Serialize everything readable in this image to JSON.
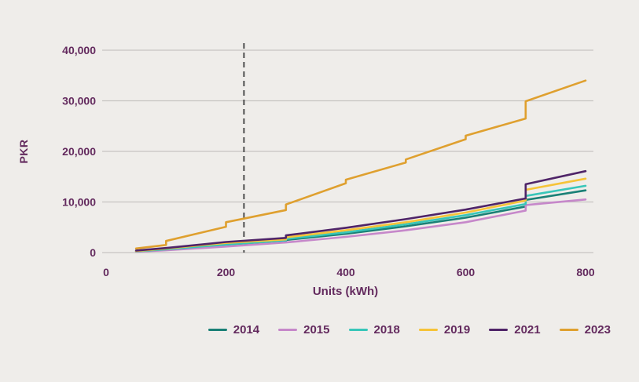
{
  "chart_data": {
    "type": "line",
    "title": "",
    "xlabel": "Units (kWh)",
    "ylabel": "PKR",
    "xlim": [
      0,
      800
    ],
    "ylim": [
      0,
      40000
    ],
    "grid": "horizontal",
    "legend_position": "bottom",
    "x_ticks": [
      {
        "value": 0,
        "label": "0"
      },
      {
        "value": 200,
        "label": "200"
      },
      {
        "value": 400,
        "label": "400"
      },
      {
        "value": 600,
        "label": "600"
      },
      {
        "value": 800,
        "label": "800"
      }
    ],
    "y_ticks": [
      {
        "value": 0,
        "label": "0"
      },
      {
        "value": 10000,
        "label": "10,000"
      },
      {
        "value": 20000,
        "label": "20,000"
      },
      {
        "value": 30000,
        "label": "30,000"
      },
      {
        "value": 40000,
        "label": "40,000"
      }
    ],
    "annotation": {
      "type": "vline",
      "x": 230,
      "style": "dashed"
    },
    "series": [
      {
        "name": "2014",
        "color": "#1a8076",
        "points": [
          [
            50,
            200
          ],
          [
            100,
            550
          ],
          [
            200,
            1400
          ],
          [
            300,
            2200
          ],
          [
            300,
            2500
          ],
          [
            400,
            3700
          ],
          [
            500,
            5200
          ],
          [
            600,
            6900
          ],
          [
            700,
            9100
          ],
          [
            700,
            10400
          ],
          [
            800,
            12300
          ]
        ]
      },
      {
        "name": "2015",
        "color": "#c688ca",
        "points": [
          [
            50,
            150
          ],
          [
            100,
            450
          ],
          [
            200,
            1200
          ],
          [
            300,
            2000
          ],
          [
            400,
            3100
          ],
          [
            500,
            4400
          ],
          [
            600,
            6000
          ],
          [
            700,
            8300
          ],
          [
            700,
            9400
          ],
          [
            800,
            10500
          ]
        ]
      },
      {
        "name": "2018",
        "color": "#38c6b9",
        "points": [
          [
            50,
            250
          ],
          [
            100,
            650
          ],
          [
            200,
            1600
          ],
          [
            300,
            2400
          ],
          [
            300,
            2700
          ],
          [
            400,
            4000
          ],
          [
            500,
            5600
          ],
          [
            600,
            7400
          ],
          [
            700,
            9600
          ],
          [
            700,
            11200
          ],
          [
            800,
            13200
          ]
        ]
      },
      {
        "name": "2019",
        "color": "#f6c338",
        "points": [
          [
            50,
            300
          ],
          [
            100,
            800
          ],
          [
            200,
            1900
          ],
          [
            300,
            2600
          ],
          [
            300,
            3000
          ],
          [
            400,
            4400
          ],
          [
            500,
            6000
          ],
          [
            600,
            7900
          ],
          [
            700,
            10300
          ],
          [
            700,
            12400
          ],
          [
            800,
            14600
          ]
        ]
      },
      {
        "name": "2021",
        "color": "#4f2468",
        "points": [
          [
            50,
            400
          ],
          [
            100,
            900
          ],
          [
            200,
            2100
          ],
          [
            300,
            2900
          ],
          [
            300,
            3400
          ],
          [
            400,
            4900
          ],
          [
            500,
            6600
          ],
          [
            600,
            8500
          ],
          [
            700,
            10700
          ],
          [
            700,
            13500
          ],
          [
            800,
            16100
          ]
        ]
      },
      {
        "name": "2023",
        "color": "#dfa02f",
        "points": [
          [
            50,
            800
          ],
          [
            100,
            1500
          ],
          [
            100,
            2300
          ],
          [
            200,
            5100
          ],
          [
            200,
            6000
          ],
          [
            300,
            8400
          ],
          [
            300,
            9500
          ],
          [
            400,
            13700
          ],
          [
            400,
            14400
          ],
          [
            500,
            17800
          ],
          [
            500,
            18400
          ],
          [
            600,
            22400
          ],
          [
            600,
            23100
          ],
          [
            700,
            26500
          ],
          [
            700,
            29900
          ],
          [
            800,
            34000
          ]
        ]
      }
    ]
  },
  "colors": {
    "background": "#efedea",
    "grid": "#c7c4c2",
    "dashed_line": "#4e4e4e",
    "text": "#632a5e"
  }
}
